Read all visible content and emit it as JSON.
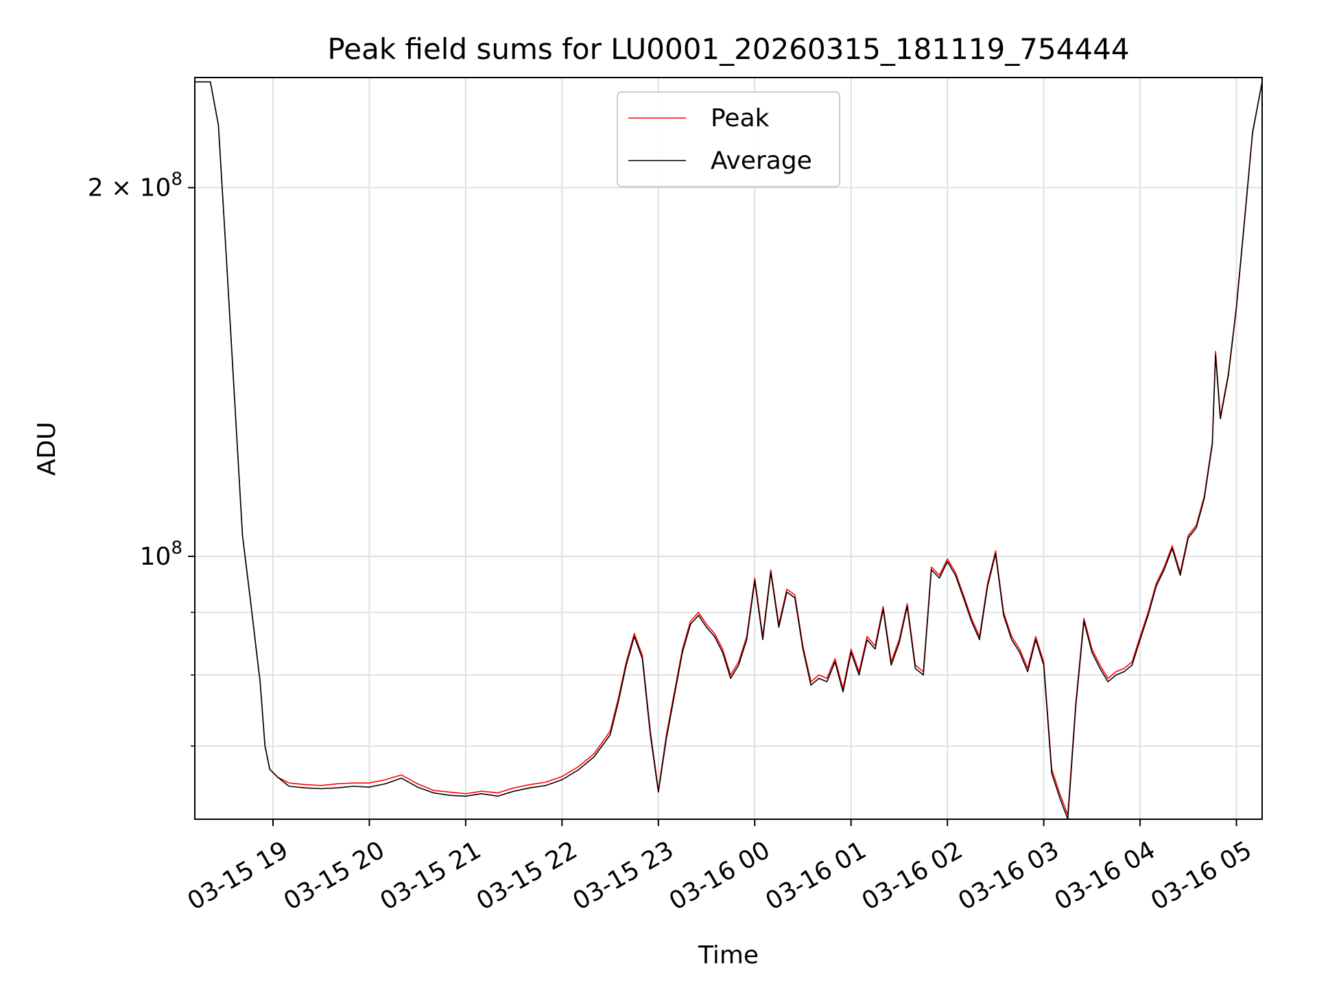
{
  "chart_data": {
    "type": "line",
    "title": "Peak field sums for LU0001_20260315_181119_754444",
    "xlabel": "Time",
    "ylabel": "ADU",
    "y_scale": "log",
    "ylim": [
      61000000,
      246000000
    ],
    "xlim": [
      "2026-03-15 18:11:19",
      "2026-03-16 05:16:00"
    ],
    "grid": true,
    "legend_position": "upper center",
    "x_ticks": [
      "03-15 19",
      "03-15 20",
      "03-15 21",
      "03-15 22",
      "03-15 23",
      "03-16 00",
      "03-16 01",
      "03-16 02",
      "03-16 03",
      "03-16 04",
      "03-16 05"
    ],
    "x_tick_times": [
      "2026-03-15 19:00",
      "2026-03-15 20:00",
      "2026-03-15 21:00",
      "2026-03-15 22:00",
      "2026-03-15 23:00",
      "2026-03-16 00:00",
      "2026-03-16 01:00",
      "2026-03-16 02:00",
      "2026-03-16 03:00",
      "2026-03-16 04:00",
      "2026-03-16 05:00"
    ],
    "y_ticks": [
      {
        "value": 100000000,
        "base": "10",
        "exp": "8",
        "coef": ""
      },
      {
        "value": 200000000,
        "base": "10",
        "exp": "8",
        "coef": "2 × "
      }
    ],
    "x": [
      "2026-03-15 18:11",
      "2026-03-15 18:21",
      "2026-03-15 18:26",
      "2026-03-15 18:31",
      "2026-03-15 18:36",
      "2026-03-15 18:41",
      "2026-03-15 18:46",
      "2026-03-15 18:50",
      "2026-03-15 18:52",
      "2026-03-15 18:55",
      "2026-03-15 18:58",
      "2026-03-15 19:03",
      "2026-03-15 19:10",
      "2026-03-15 19:20",
      "2026-03-15 19:30",
      "2026-03-15 19:40",
      "2026-03-15 19:50",
      "2026-03-15 20:00",
      "2026-03-15 20:10",
      "2026-03-15 20:20",
      "2026-03-15 20:30",
      "2026-03-15 20:40",
      "2026-03-15 20:50",
      "2026-03-15 21:00",
      "2026-03-15 21:10",
      "2026-03-15 21:20",
      "2026-03-15 21:30",
      "2026-03-15 21:40",
      "2026-03-15 21:50",
      "2026-03-15 22:00",
      "2026-03-15 22:10",
      "2026-03-15 22:20",
      "2026-03-15 22:30",
      "2026-03-15 22:35",
      "2026-03-15 22:40",
      "2026-03-15 22:45",
      "2026-03-15 22:50",
      "2026-03-15 22:55",
      "2026-03-15 23:00",
      "2026-03-15 23:05",
      "2026-03-15 23:10",
      "2026-03-15 23:15",
      "2026-03-15 23:20",
      "2026-03-15 23:25",
      "2026-03-15 23:30",
      "2026-03-15 23:35",
      "2026-03-15 23:40",
      "2026-03-15 23:45",
      "2026-03-15 23:50",
      "2026-03-15 23:55",
      "2026-03-16 00:00",
      "2026-03-16 00:05",
      "2026-03-16 00:10",
      "2026-03-16 00:15",
      "2026-03-16 00:20",
      "2026-03-16 00:25",
      "2026-03-16 00:30",
      "2026-03-16 00:35",
      "2026-03-16 00:40",
      "2026-03-16 00:45",
      "2026-03-16 00:50",
      "2026-03-16 00:55",
      "2026-03-16 01:00",
      "2026-03-16 01:05",
      "2026-03-16 01:10",
      "2026-03-16 01:15",
      "2026-03-16 01:20",
      "2026-03-16 01:25",
      "2026-03-16 01:30",
      "2026-03-16 01:35",
      "2026-03-16 01:40",
      "2026-03-16 01:45",
      "2026-03-16 01:50",
      "2026-03-16 01:55",
      "2026-03-16 02:00",
      "2026-03-16 02:05",
      "2026-03-16 02:10",
      "2026-03-16 02:15",
      "2026-03-16 02:20",
      "2026-03-16 02:25",
      "2026-03-16 02:30",
      "2026-03-16 02:35",
      "2026-03-16 02:40",
      "2026-03-16 02:45",
      "2026-03-16 02:50",
      "2026-03-16 02:55",
      "2026-03-16 03:00",
      "2026-03-16 03:05",
      "2026-03-16 03:10",
      "2026-03-16 03:15",
      "2026-03-16 03:20",
      "2026-03-16 03:25",
      "2026-03-16 03:30",
      "2026-03-16 03:35",
      "2026-03-16 03:40",
      "2026-03-16 03:45",
      "2026-03-16 03:50",
      "2026-03-16 03:55",
      "2026-03-16 04:00",
      "2026-03-16 04:05",
      "2026-03-16 04:10",
      "2026-03-16 04:15",
      "2026-03-16 04:20",
      "2026-03-16 04:25",
      "2026-03-16 04:30",
      "2026-03-16 04:35",
      "2026-03-16 04:40",
      "2026-03-16 04:45",
      "2026-03-16 04:47",
      "2026-03-16 04:50",
      "2026-03-16 04:55",
      "2026-03-16 05:00",
      "2026-03-16 05:05",
      "2026-03-16 05:10",
      "2026-03-16 05:16"
    ],
    "series": [
      {
        "name": "Peak",
        "color": "#ff0000",
        "values": [
          244000000,
          244000000,
          225000000,
          175000000,
          135000000,
          104000000,
          92000000,
          83000000,
          79000000,
          70000000,
          67000000,
          66000000,
          65300000,
          65100000,
          65000000,
          65200000,
          65300000,
          65300000,
          65700000,
          66300000,
          65200000,
          64400000,
          64200000,
          64000000,
          64300000,
          64100000,
          64700000,
          65100000,
          65400000,
          66100000,
          67300000,
          69000000,
          72000000,
          76500000,
          82000000,
          86500000,
          83000000,
          72000000,
          64400000,
          71500000,
          77500000,
          84000000,
          88500000,
          90000000,
          88000000,
          86500000,
          84000000,
          80000000,
          82000000,
          86000000,
          96000000,
          86000000,
          97500000,
          88000000,
          94000000,
          93000000,
          84500000,
          79000000,
          80000000,
          79500000,
          82500000,
          78000000,
          84000000,
          80500000,
          86000000,
          84500000,
          91000000,
          82000000,
          85500000,
          91500000,
          81500000,
          80500000,
          98000000,
          96500000,
          99500000,
          97000000,
          93000000,
          89000000,
          86000000,
          95000000,
          101000000,
          90000000,
          86000000,
          84000000,
          81000000,
          86000000,
          82000000,
          67000000,
          64000000,
          61500000,
          76000000,
          89000000,
          84000000,
          81500000,
          79500000,
          80500000,
          81000000,
          82000000,
          86000000,
          90000000,
          95000000,
          98000000,
          102000000,
          97000000,
          104000000,
          106000000,
          112000000,
          124000000,
          147000000,
          130000000,
          141000000,
          160000000,
          188000000,
          222000000,
          244000000
        ]
      },
      {
        "name": "Average",
        "color": "#000000",
        "values": [
          244000000,
          244000000,
          225000000,
          175000000,
          135000000,
          104000000,
          92000000,
          83000000,
          79000000,
          70000000,
          67000000,
          66000000,
          64900000,
          64700000,
          64600000,
          64700000,
          64900000,
          64800000,
          65200000,
          65900000,
          64800000,
          64100000,
          63800000,
          63700000,
          64000000,
          63700000,
          64300000,
          64700000,
          65000000,
          65700000,
          66900000,
          68600000,
          71500000,
          76000000,
          81500000,
          86000000,
          82500000,
          71500000,
          64200000,
          71000000,
          77000000,
          83500000,
          88000000,
          89500000,
          87500000,
          86000000,
          83500000,
          79500000,
          81500000,
          85500000,
          95500000,
          85500000,
          97000000,
          87500000,
          93500000,
          92500000,
          84000000,
          78500000,
          79500000,
          79000000,
          82000000,
          77500000,
          83500000,
          80000000,
          85500000,
          84000000,
          90500000,
          81500000,
          85000000,
          91000000,
          81000000,
          80000000,
          97500000,
          96000000,
          99000000,
          96500000,
          92500000,
          88500000,
          85500000,
          94500000,
          100500000,
          89500000,
          85500000,
          83500000,
          80500000,
          85500000,
          81500000,
          66500000,
          63500000,
          61000000,
          75500000,
          88500000,
          83500000,
          81000000,
          79000000,
          80000000,
          80500000,
          81500000,
          85500000,
          89500000,
          94500000,
          97500000,
          101500000,
          96500000,
          103500000,
          105500000,
          111500000,
          123500000,
          146000000,
          129500000,
          140500000,
          159500000,
          187500000,
          221500000,
          244000000
        ]
      }
    ]
  }
}
